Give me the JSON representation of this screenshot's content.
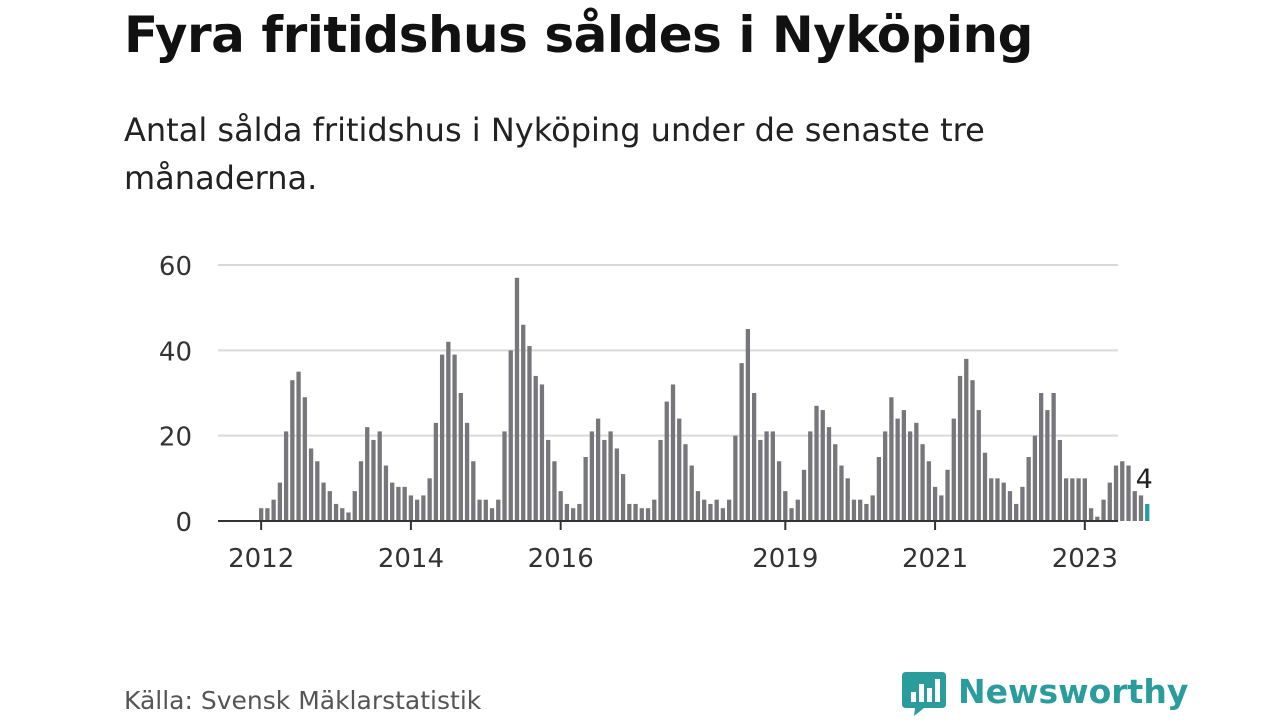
{
  "header": {
    "title": "Fyra fritidshus såldes i Nyköping",
    "subtitle": "Antal sålda fritidshus i Nyköping under de senaste tre månaderna."
  },
  "footer": {
    "source": "Källa: Svensk Mäklarstatistik",
    "brand": "Newsworthy",
    "brand_color": "#2a9c9c"
  },
  "chart_data": {
    "type": "bar",
    "ylim": [
      0,
      60
    ],
    "yticks": [
      "0",
      "20",
      "40",
      "60"
    ],
    "xticks": [
      {
        "label": "2012",
        "date": "2012-01"
      },
      {
        "label": "2014",
        "date": "2014-01"
      },
      {
        "label": "2016",
        "date": "2016-01"
      },
      {
        "label": "2019",
        "date": "2019-01"
      },
      {
        "label": "2021",
        "date": "2021-01"
      },
      {
        "label": "2023",
        "date": "2023-01"
      }
    ],
    "grid": true,
    "bar_color": "#77777b",
    "highlight_color": "#2a9c9c",
    "series": [
      {
        "x": "2012-01",
        "y": 3
      },
      {
        "x": "2012-02",
        "y": 3
      },
      {
        "x": "2012-03",
        "y": 5
      },
      {
        "x": "2012-04",
        "y": 9
      },
      {
        "x": "2012-05",
        "y": 21
      },
      {
        "x": "2012-06",
        "y": 33
      },
      {
        "x": "2012-07",
        "y": 35
      },
      {
        "x": "2012-08",
        "y": 29
      },
      {
        "x": "2012-09",
        "y": 17
      },
      {
        "x": "2012-10",
        "y": 14
      },
      {
        "x": "2012-11",
        "y": 9
      },
      {
        "x": "2012-12",
        "y": 7
      },
      {
        "x": "2013-01",
        "y": 4
      },
      {
        "x": "2013-02",
        "y": 3
      },
      {
        "x": "2013-03",
        "y": 2
      },
      {
        "x": "2013-04",
        "y": 7
      },
      {
        "x": "2013-05",
        "y": 14
      },
      {
        "x": "2013-06",
        "y": 22
      },
      {
        "x": "2013-07",
        "y": 19
      },
      {
        "x": "2013-08",
        "y": 21
      },
      {
        "x": "2013-09",
        "y": 13
      },
      {
        "x": "2013-10",
        "y": 9
      },
      {
        "x": "2013-11",
        "y": 8
      },
      {
        "x": "2013-12",
        "y": 8
      },
      {
        "x": "2014-01",
        "y": 6
      },
      {
        "x": "2014-02",
        "y": 5
      },
      {
        "x": "2014-03",
        "y": 6
      },
      {
        "x": "2014-04",
        "y": 10
      },
      {
        "x": "2014-05",
        "y": 23
      },
      {
        "x": "2014-06",
        "y": 39
      },
      {
        "x": "2014-07",
        "y": 42
      },
      {
        "x": "2014-08",
        "y": 39
      },
      {
        "x": "2014-09",
        "y": 30
      },
      {
        "x": "2014-10",
        "y": 23
      },
      {
        "x": "2014-11",
        "y": 14
      },
      {
        "x": "2014-12",
        "y": 5
      },
      {
        "x": "2015-01",
        "y": 5
      },
      {
        "x": "2015-02",
        "y": 3
      },
      {
        "x": "2015-03",
        "y": 5
      },
      {
        "x": "2015-04",
        "y": 21
      },
      {
        "x": "2015-05",
        "y": 40
      },
      {
        "x": "2015-06",
        "y": 57
      },
      {
        "x": "2015-07",
        "y": 46
      },
      {
        "x": "2015-08",
        "y": 41
      },
      {
        "x": "2015-09",
        "y": 34
      },
      {
        "x": "2015-10",
        "y": 32
      },
      {
        "x": "2015-11",
        "y": 19
      },
      {
        "x": "2015-12",
        "y": 14
      },
      {
        "x": "2016-01",
        "y": 7
      },
      {
        "x": "2016-02",
        "y": 4
      },
      {
        "x": "2016-03",
        "y": 3
      },
      {
        "x": "2016-04",
        "y": 4
      },
      {
        "x": "2016-05",
        "y": 15
      },
      {
        "x": "2016-06",
        "y": 21
      },
      {
        "x": "2016-07",
        "y": 24
      },
      {
        "x": "2016-08",
        "y": 19
      },
      {
        "x": "2016-09",
        "y": 21
      },
      {
        "x": "2016-10",
        "y": 17
      },
      {
        "x": "2016-11",
        "y": 11
      },
      {
        "x": "2016-12",
        "y": 4
      },
      {
        "x": "2017-01",
        "y": 4
      },
      {
        "x": "2017-02",
        "y": 3
      },
      {
        "x": "2017-03",
        "y": 3
      },
      {
        "x": "2017-04",
        "y": 5
      },
      {
        "x": "2017-05",
        "y": 19
      },
      {
        "x": "2017-06",
        "y": 28
      },
      {
        "x": "2017-07",
        "y": 32
      },
      {
        "x": "2017-08",
        "y": 24
      },
      {
        "x": "2017-09",
        "y": 18
      },
      {
        "x": "2017-10",
        "y": 13
      },
      {
        "x": "2017-11",
        "y": 7
      },
      {
        "x": "2017-12",
        "y": 5
      },
      {
        "x": "2018-01",
        "y": 4
      },
      {
        "x": "2018-02",
        "y": 5
      },
      {
        "x": "2018-03",
        "y": 3
      },
      {
        "x": "2018-04",
        "y": 5
      },
      {
        "x": "2018-05",
        "y": 20
      },
      {
        "x": "2018-06",
        "y": 37
      },
      {
        "x": "2018-07",
        "y": 45
      },
      {
        "x": "2018-08",
        "y": 30
      },
      {
        "x": "2018-09",
        "y": 19
      },
      {
        "x": "2018-10",
        "y": 21
      },
      {
        "x": "2018-11",
        "y": 21
      },
      {
        "x": "2018-12",
        "y": 14
      },
      {
        "x": "2019-01",
        "y": 7
      },
      {
        "x": "2019-02",
        "y": 3
      },
      {
        "x": "2019-03",
        "y": 5
      },
      {
        "x": "2019-04",
        "y": 12
      },
      {
        "x": "2019-05",
        "y": 21
      },
      {
        "x": "2019-06",
        "y": 27
      },
      {
        "x": "2019-07",
        "y": 26
      },
      {
        "x": "2019-08",
        "y": 22
      },
      {
        "x": "2019-09",
        "y": 18
      },
      {
        "x": "2019-10",
        "y": 13
      },
      {
        "x": "2019-11",
        "y": 10
      },
      {
        "x": "2019-12",
        "y": 5
      },
      {
        "x": "2020-01",
        "y": 5
      },
      {
        "x": "2020-02",
        "y": 4
      },
      {
        "x": "2020-03",
        "y": 6
      },
      {
        "x": "2020-04",
        "y": 15
      },
      {
        "x": "2020-05",
        "y": 21
      },
      {
        "x": "2020-06",
        "y": 29
      },
      {
        "x": "2020-07",
        "y": 24
      },
      {
        "x": "2020-08",
        "y": 26
      },
      {
        "x": "2020-09",
        "y": 21
      },
      {
        "x": "2020-10",
        "y": 23
      },
      {
        "x": "2020-11",
        "y": 18
      },
      {
        "x": "2020-12",
        "y": 14
      },
      {
        "x": "2021-01",
        "y": 8
      },
      {
        "x": "2021-02",
        "y": 6
      },
      {
        "x": "2021-03",
        "y": 12
      },
      {
        "x": "2021-04",
        "y": 24
      },
      {
        "x": "2021-05",
        "y": 34
      },
      {
        "x": "2021-06",
        "y": 38
      },
      {
        "x": "2021-07",
        "y": 33
      },
      {
        "x": "2021-08",
        "y": 26
      },
      {
        "x": "2021-09",
        "y": 16
      },
      {
        "x": "2021-10",
        "y": 10
      },
      {
        "x": "2021-11",
        "y": 10
      },
      {
        "x": "2021-12",
        "y": 9
      },
      {
        "x": "2022-01",
        "y": 7
      },
      {
        "x": "2022-02",
        "y": 4
      },
      {
        "x": "2022-03",
        "y": 8
      },
      {
        "x": "2022-04",
        "y": 15
      },
      {
        "x": "2022-05",
        "y": 20
      },
      {
        "x": "2022-06",
        "y": 30
      },
      {
        "x": "2022-07",
        "y": 26
      },
      {
        "x": "2022-08",
        "y": 30
      },
      {
        "x": "2022-09",
        "y": 19
      },
      {
        "x": "2022-10",
        "y": 10
      },
      {
        "x": "2022-11",
        "y": 10
      },
      {
        "x": "2022-12",
        "y": 10
      },
      {
        "x": "2023-01",
        "y": 10
      },
      {
        "x": "2023-02",
        "y": 3
      },
      {
        "x": "2023-03",
        "y": 1
      },
      {
        "x": "2023-04",
        "y": 5
      },
      {
        "x": "2023-05",
        "y": 9
      },
      {
        "x": "2023-06",
        "y": 13
      },
      {
        "x": "2023-07",
        "y": 14
      },
      {
        "x": "2023-08",
        "y": 13
      },
      {
        "x": "2023-09",
        "y": 7
      },
      {
        "x": "2023-10",
        "y": 6
      },
      {
        "x": "2023-11",
        "y": 4,
        "highlight": true
      }
    ],
    "annotations": [
      {
        "x": "2023-11",
        "text": "4"
      }
    ]
  }
}
